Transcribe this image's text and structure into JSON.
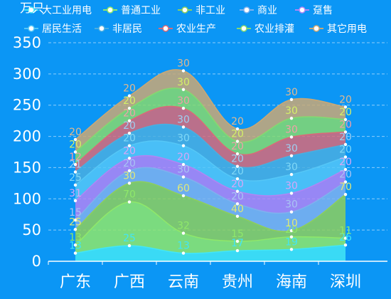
{
  "chart_data": {
    "type": "area",
    "stacked": true,
    "smooth": true,
    "title": "",
    "xlabel": "",
    "ylabel": "万只",
    "ylim": [
      0,
      350
    ],
    "yticks": [
      0,
      50,
      100,
      150,
      200,
      250,
      300,
      350
    ],
    "grid": true,
    "legend_position": "top",
    "categories": [
      "广东",
      "广西",
      "云南",
      "贵州",
      "海南",
      "深圳"
    ],
    "series": [
      {
        "name": "大工业用电",
        "values": [
          13,
          25,
          13,
          17,
          19,
          26
        ],
        "color": "#43e6f5"
      },
      {
        "name": "普通工业",
        "values": [
          13,
          70,
          32,
          15,
          20,
          11
        ],
        "color": "#8fe86a"
      },
      {
        "name": "非工业",
        "values": [
          25,
          30,
          60,
          40,
          10,
          70
        ],
        "color": "#8ecf5c"
      },
      {
        "name": "商业",
        "values": [
          15,
          20,
          30,
          20,
          30,
          20
        ],
        "color": "#7fb1ee"
      },
      {
        "name": "趸售",
        "values": [
          31,
          20,
          20,
          20,
          30,
          20
        ],
        "color": "#b085f5"
      },
      {
        "name": "居民生活",
        "values": [
          25,
          20,
          30,
          20,
          30,
          20
        ],
        "color": "#55c7f7"
      },
      {
        "name": "非居民",
        "values": [
          21,
          20,
          30,
          20,
          30,
          20
        ],
        "color": "#4aaee0"
      },
      {
        "name": "农业生产",
        "values": [
          12,
          20,
          30,
          20,
          30,
          20
        ],
        "color": "#d96a78"
      },
      {
        "name": "农业排灌",
        "values": [
          20,
          20,
          30,
          20,
          30,
          20
        ],
        "color": "#86d96f"
      },
      {
        "name": "其它用电",
        "values": [
          20,
          20,
          30,
          20,
          30,
          20
        ],
        "color": "#cba874"
      }
    ],
    "label_colors": [
      "#43e6f5",
      "#8fe86a",
      "#e0e878",
      "#a9c4f4",
      "#d7a6f7",
      "#7fd8f7",
      "#9ecff0",
      "#f0a0a8",
      "#d4f068",
      "#e0b890"
    ]
  },
  "colors": {
    "background": "#0b96f5",
    "axis_text": "#ffffff",
    "grid": "#9dd3fb"
  }
}
